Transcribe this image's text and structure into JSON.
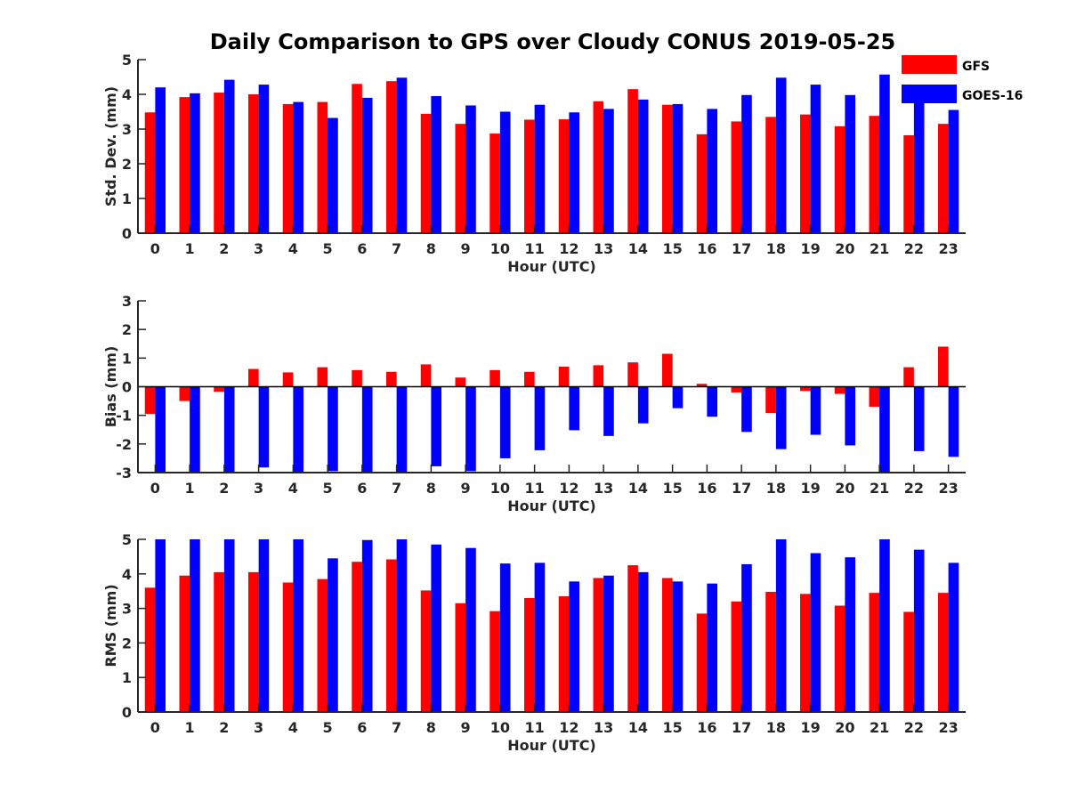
{
  "title": "Daily Comparison to GPS over Cloudy CONUS 2019-05-25",
  "legend": [
    {
      "name": "GFS",
      "color": "#ff0000"
    },
    {
      "name": "GOES-16",
      "color": "#0000ff"
    }
  ],
  "chart_data": [
    {
      "type": "bar",
      "ylabel": "Std. Dev. (mm)",
      "xlabel": "Hour (UTC)",
      "ylim": [
        0,
        5
      ],
      "yticks": [
        0,
        1,
        2,
        3,
        4,
        5
      ],
      "categories": [
        "0",
        "1",
        "2",
        "3",
        "4",
        "5",
        "6",
        "7",
        "8",
        "9",
        "10",
        "11",
        "12",
        "13",
        "14",
        "15",
        "16",
        "17",
        "18",
        "19",
        "20",
        "21",
        "22",
        "23"
      ],
      "series": [
        {
          "name": "GFS",
          "color": "#ff0000",
          "values": [
            3.48,
            3.92,
            4.05,
            4.0,
            3.72,
            3.78,
            4.3,
            4.38,
            3.44,
            3.15,
            2.87,
            3.27,
            3.28,
            3.8,
            4.15,
            3.7,
            2.85,
            3.22,
            3.35,
            3.42,
            3.08,
            3.38,
            2.82,
            3.15
          ]
        },
        {
          "name": "GOES-16",
          "color": "#0000ff",
          "values": [
            4.2,
            4.03,
            4.42,
            4.28,
            3.78,
            3.32,
            3.9,
            4.48,
            3.95,
            3.68,
            3.5,
            3.7,
            3.48,
            3.58,
            3.85,
            3.72,
            3.58,
            3.98,
            4.48,
            4.28,
            3.98,
            4.57,
            4.1,
            3.55
          ]
        }
      ]
    },
    {
      "type": "bar",
      "ylabel": "Bias (mm)",
      "xlabel": "Hour (UTC)",
      "ylim": [
        -3,
        3
      ],
      "yticks": [
        -3,
        -2,
        -1,
        0,
        1,
        2,
        3
      ],
      "categories": [
        "0",
        "1",
        "2",
        "3",
        "4",
        "5",
        "6",
        "7",
        "8",
        "9",
        "10",
        "11",
        "12",
        "13",
        "14",
        "15",
        "16",
        "17",
        "18",
        "19",
        "20",
        "21",
        "22",
        "23"
      ],
      "series": [
        {
          "name": "GFS",
          "color": "#ff0000",
          "values": [
            -0.95,
            -0.5,
            -0.18,
            0.62,
            0.5,
            0.68,
            0.58,
            0.52,
            0.78,
            0.32,
            0.58,
            0.52,
            0.7,
            0.75,
            0.85,
            1.15,
            0.1,
            -0.2,
            -0.92,
            -0.15,
            -0.25,
            -0.7,
            0.68,
            1.4
          ]
        },
        {
          "name": "GOES-16",
          "color": "#0000ff",
          "values": [
            -3.0,
            -3.0,
            -3.0,
            -2.82,
            -3.0,
            -2.95,
            -3.0,
            -3.0,
            -2.78,
            -2.95,
            -2.5,
            -2.22,
            -1.52,
            -1.72,
            -1.28,
            -0.75,
            -1.05,
            -1.58,
            -2.18,
            -1.68,
            -2.05,
            -3.0,
            -2.25,
            -2.45
          ]
        }
      ]
    },
    {
      "type": "bar",
      "ylabel": "RMS (mm)",
      "xlabel": "Hour (UTC)",
      "ylim": [
        0,
        5
      ],
      "yticks": [
        0,
        1,
        2,
        3,
        4,
        5
      ],
      "categories": [
        "0",
        "1",
        "2",
        "3",
        "4",
        "5",
        "6",
        "7",
        "8",
        "9",
        "10",
        "11",
        "12",
        "13",
        "14",
        "15",
        "16",
        "17",
        "18",
        "19",
        "20",
        "21",
        "22",
        "23"
      ],
      "series": [
        {
          "name": "GFS",
          "color": "#ff0000",
          "values": [
            3.6,
            3.95,
            4.05,
            4.05,
            3.75,
            3.85,
            4.35,
            4.42,
            3.52,
            3.15,
            2.92,
            3.3,
            3.35,
            3.88,
            4.25,
            3.88,
            2.85,
            3.2,
            3.48,
            3.42,
            3.08,
            3.45,
            2.9,
            3.45
          ]
        },
        {
          "name": "GOES-16",
          "color": "#0000ff",
          "values": [
            5.0,
            5.0,
            5.0,
            5.0,
            5.0,
            4.45,
            4.98,
            5.0,
            4.85,
            4.75,
            4.3,
            4.32,
            3.78,
            3.95,
            4.05,
            3.78,
            3.72,
            4.28,
            5.0,
            4.6,
            4.48,
            5.0,
            4.7,
            4.32
          ]
        }
      ]
    }
  ]
}
